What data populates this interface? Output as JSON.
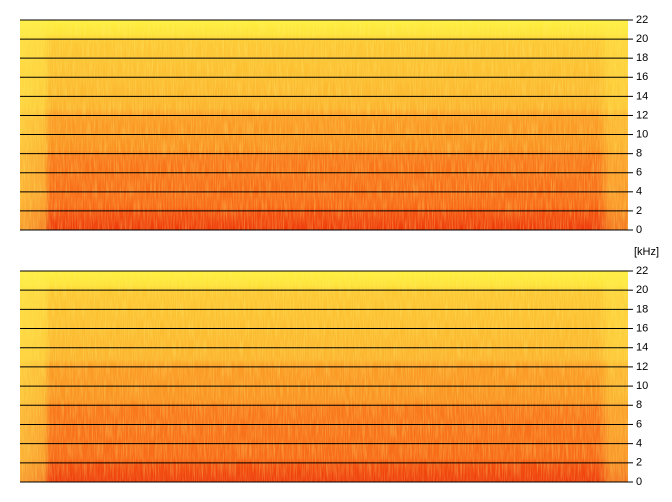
{
  "chart_data": [
    {
      "type": "spectrogram",
      "ylim": [
        0,
        22
      ],
      "yticks": [
        0,
        2,
        4,
        6,
        8,
        10,
        12,
        14,
        16,
        18,
        20,
        22
      ],
      "grid": true,
      "ylabel": "[kHz]"
    },
    {
      "type": "spectrogram",
      "ylim": [
        0,
        22
      ],
      "yticks": [
        0,
        2,
        4,
        6,
        8,
        10,
        12,
        14,
        16,
        18,
        20,
        22
      ],
      "grid": true
    }
  ]
}
